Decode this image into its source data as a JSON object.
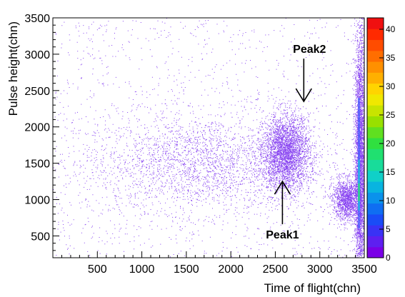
{
  "chart_data": {
    "type": "heatmap",
    "xlabel": "Time of flight(chn)",
    "ylabel": "Pulse height(chn)",
    "xlim": [
      0,
      3500
    ],
    "ylim": [
      200,
      3500
    ],
    "x_ticks": [
      500,
      1000,
      1500,
      2000,
      2500,
      3000,
      3500
    ],
    "y_ticks": [
      500,
      1000,
      1500,
      2000,
      2500,
      3000,
      3500
    ],
    "colorbar": {
      "min": 0,
      "max": 42,
      "ticks": [
        0,
        5,
        10,
        15,
        20,
        25,
        30,
        35,
        40
      ],
      "colors": [
        "#7a00e6",
        "#5e1ff0",
        "#3a32f5",
        "#1a4cf7",
        "#0f6ef2",
        "#0a92ec",
        "#08b4e0",
        "#10d0c8",
        "#18dc9a",
        "#20e070",
        "#30e040",
        "#60e020",
        "#98e000",
        "#c8e400",
        "#f0e800",
        "#ffd400",
        "#ffb000",
        "#ff9000",
        "#ff6e00",
        "#ff4c00",
        "#ff2a00",
        "#f01010"
      ]
    },
    "point_color": "#7a2df0",
    "clusters": [
      {
        "x_center": 1700,
        "y_center": 1500,
        "x_spread": 700,
        "y_spread": 330,
        "density": "low"
      },
      {
        "x_center": 2620,
        "y_center": 1650,
        "x_spread": 130,
        "y_spread": 260,
        "density": "high"
      },
      {
        "x_center": 3450,
        "y_center": 1500,
        "x_spread": 30,
        "y_spread": 900,
        "density": "very high"
      },
      {
        "x_center": 3300,
        "y_center": 1000,
        "x_spread": 80,
        "y_spread": 140,
        "density": "medium"
      }
    ],
    "annotations": [
      {
        "text": "Peak1",
        "x": 2580,
        "y": 1250,
        "arrow": "up"
      },
      {
        "text": "Peak2",
        "x": 2820,
        "y": 2350,
        "arrow": "down"
      }
    ]
  }
}
